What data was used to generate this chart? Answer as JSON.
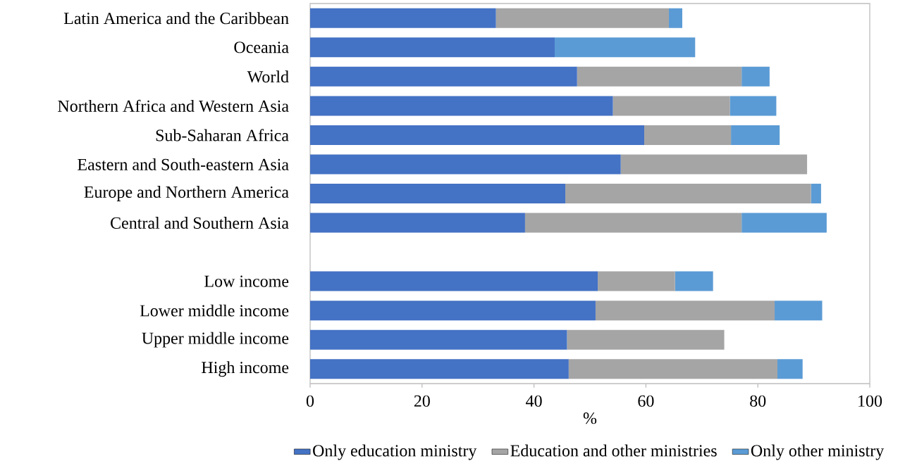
{
  "chart_data": {
    "type": "bar",
    "orientation": "horizontal",
    "stacked": true,
    "categories": [
      "Latin America and the Caribbean",
      "Oceania",
      "World",
      "Northern Africa and Western Asia",
      "Sub-Saharan Africa",
      "Eastern and South-eastern Asia",
      "Europe and Northern America",
      "Central and Southern Asia",
      null,
      "Low income",
      "Lower middle income",
      "Upper middle income",
      "High income"
    ],
    "series": [
      {
        "name": "Only education ministry",
        "color": "#4472c4",
        "values": [
          33.2,
          43.7,
          47.7,
          54.1,
          59.7,
          55.5,
          45.6,
          38.4,
          null,
          51.4,
          51.0,
          45.9,
          46.2
        ]
      },
      {
        "name": "Education and other ministries",
        "color": "#a5a5a5",
        "values": [
          30.9,
          0,
          29.4,
          20.9,
          15.5,
          33.3,
          43.9,
          38.7,
          null,
          13.8,
          32.0,
          28.1,
          37.3
        ]
      },
      {
        "name": "Only other ministry",
        "color": "#5b9bd5",
        "values": [
          2.4,
          25.1,
          5.0,
          8.3,
          8.7,
          0,
          1.8,
          15.2,
          null,
          6.8,
          8.5,
          0,
          4.5
        ]
      }
    ],
    "xlabel": "%",
    "xlim": [
      0,
      100
    ],
    "xticks": [
      0,
      20,
      40,
      60,
      80,
      100
    ],
    "grid": false,
    "legend": "bottom"
  }
}
